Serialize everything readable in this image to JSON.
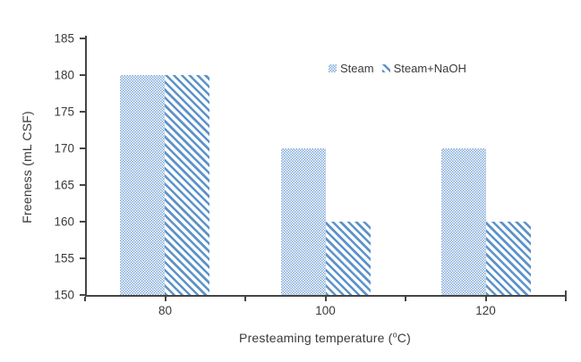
{
  "chart": {
    "ylabel": "Freeness (mL CSF)",
    "xlabel_prefix": "Presteaming temperature (",
    "xlabel_sup": "o",
    "xlabel_suffix": "C)"
  },
  "chart_data": {
    "type": "bar",
    "title": "",
    "categories": [
      "80",
      "100",
      "120"
    ],
    "series": [
      {
        "name": "Steam",
        "pattern": "dots",
        "values": [
          180,
          170,
          170
        ]
      },
      {
        "name": "Steam+NaOH",
        "pattern": "stripes",
        "values": [
          180,
          160,
          160
        ]
      }
    ],
    "xlabel": "Presteaming temperature (°C)",
    "ylabel": "Freeness (mL CSF)",
    "ylim": [
      150,
      185
    ],
    "ytick_step": 5,
    "yticks": [
      150,
      155,
      160,
      165,
      170,
      175,
      180,
      185
    ],
    "grid": false,
    "legend_position": "inside-top-right",
    "colors": {
      "dots_blue": "#7fa9da",
      "stripe_blue": "#5d93c9",
      "axis": "#454545",
      "text": "#3a3a3a"
    }
  }
}
